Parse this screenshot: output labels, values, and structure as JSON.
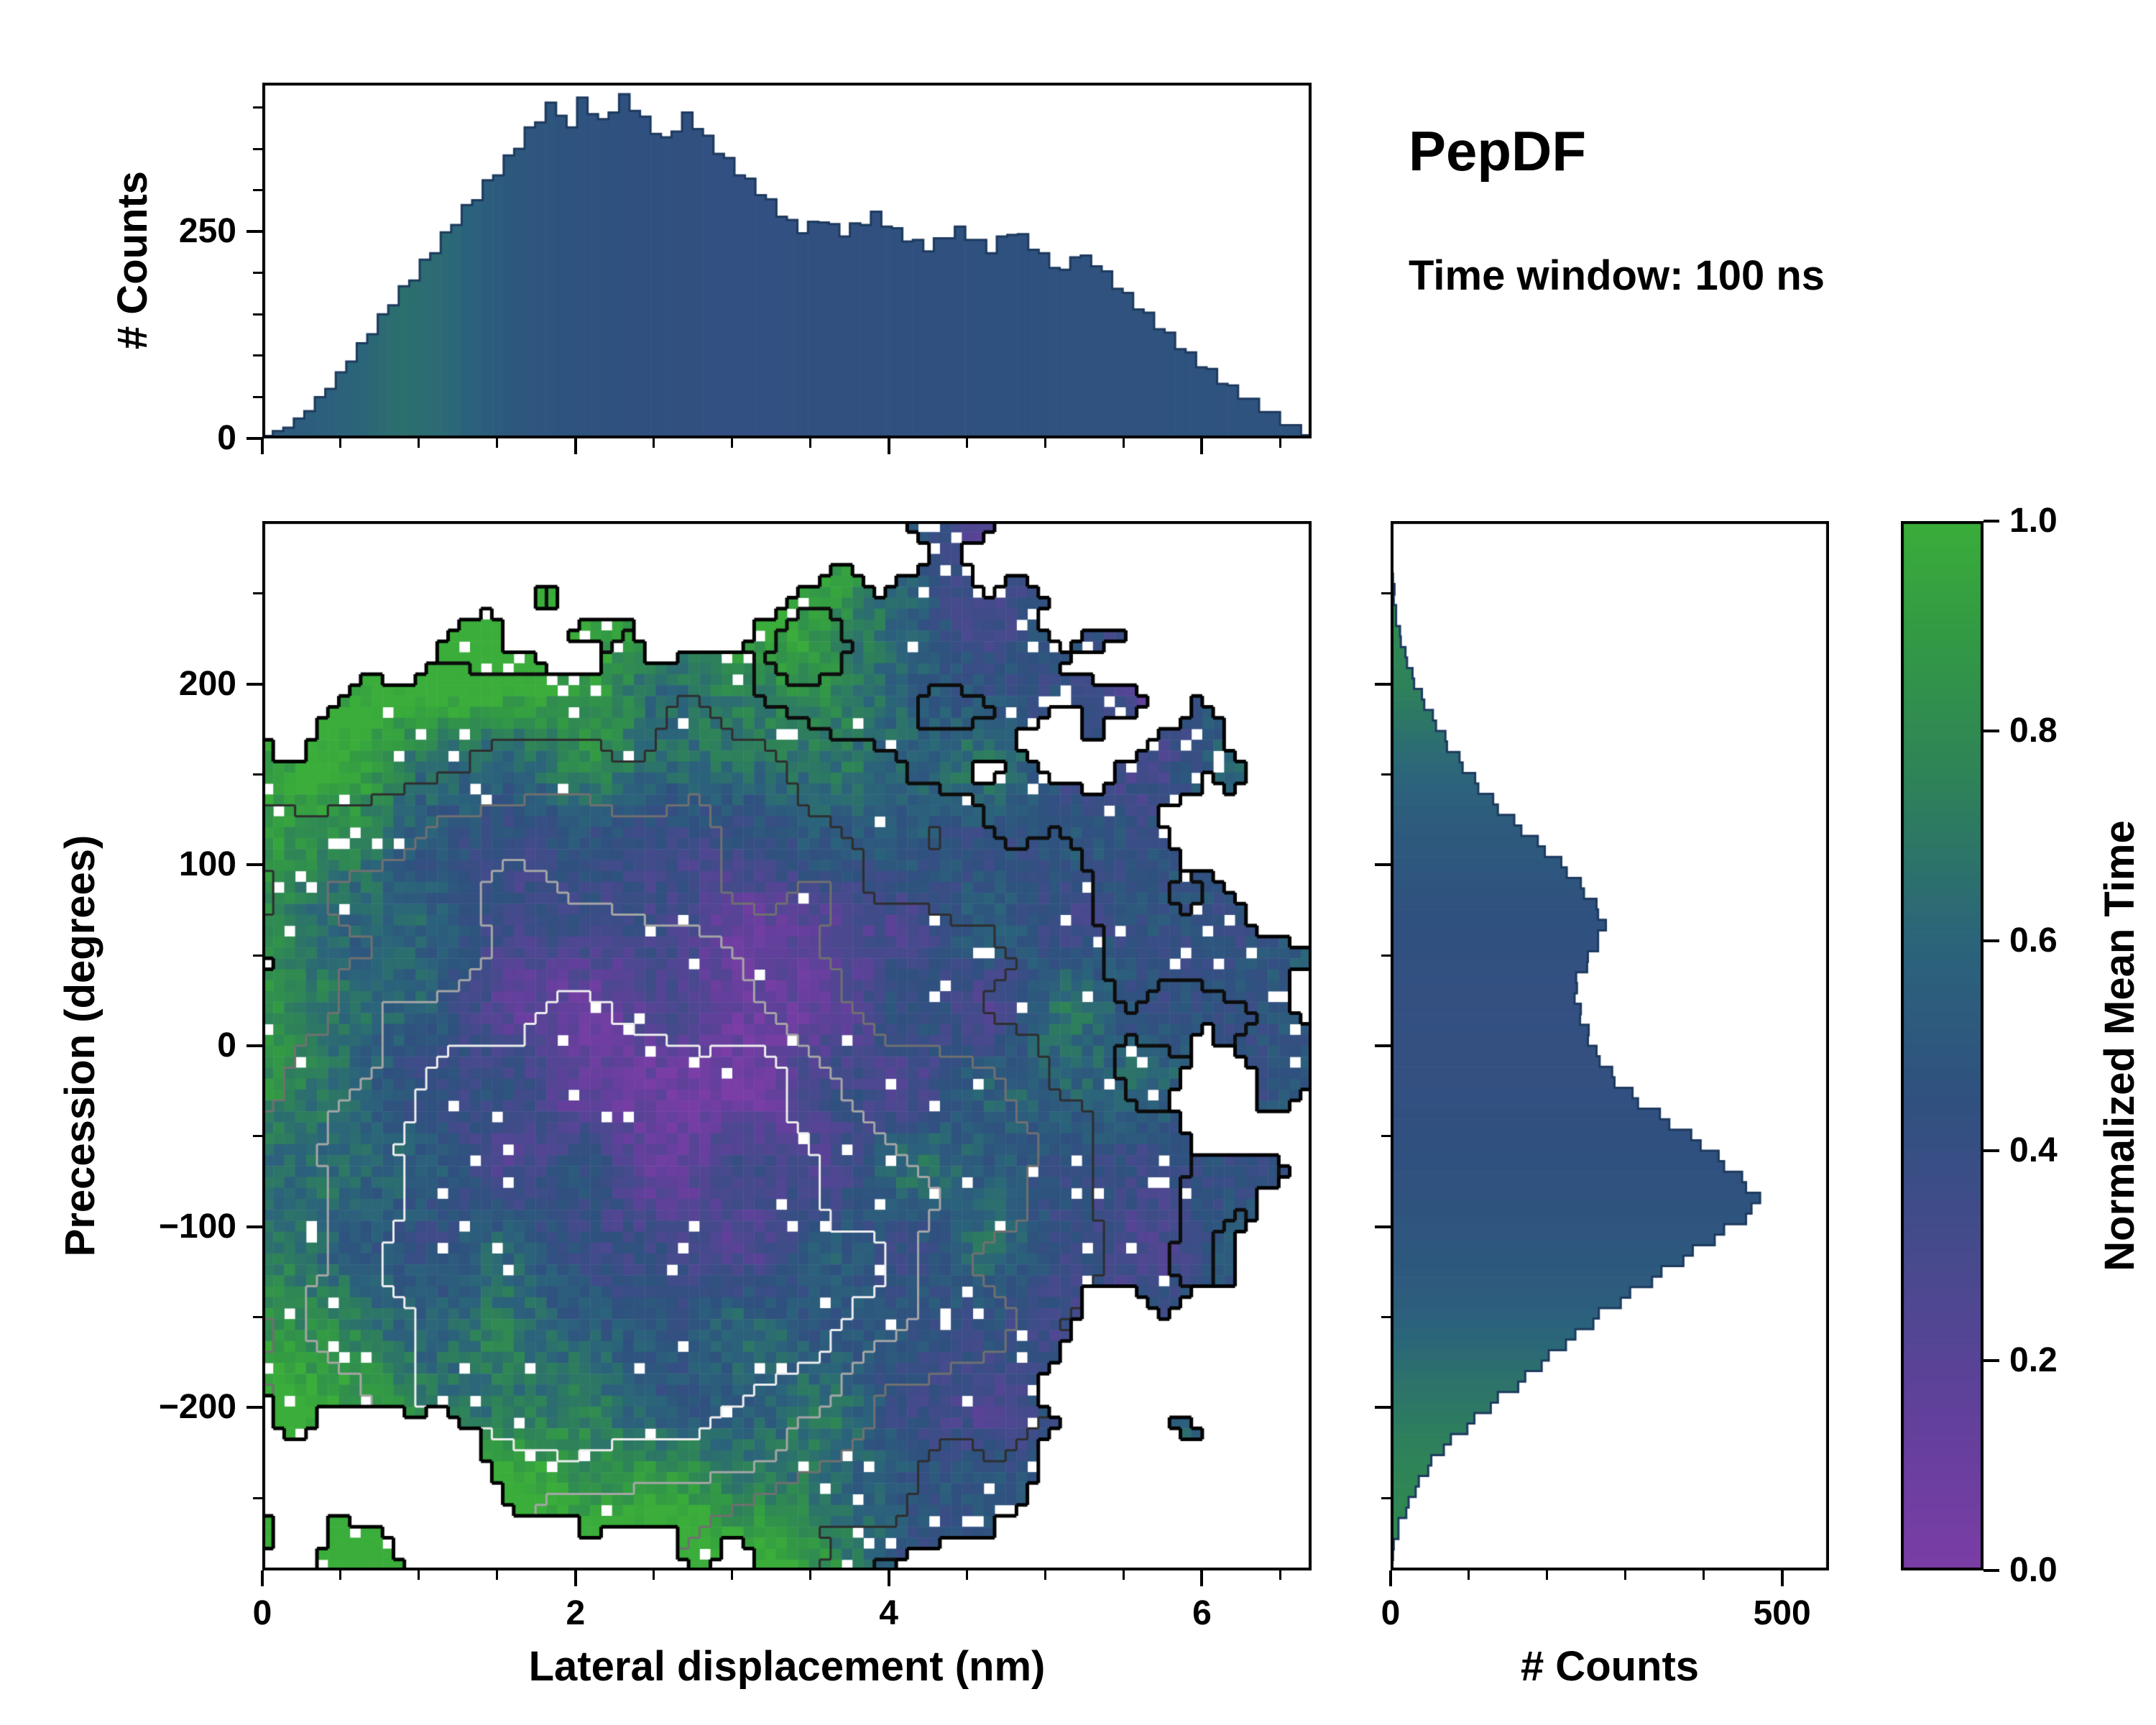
{
  "title": "PepDF",
  "subtitle": "Time window: 100 ns",
  "chart_data": [
    {
      "type": "bar",
      "name": "top-histogram",
      "ylabel": "# Counts",
      "xlim": [
        0,
        6.7
      ],
      "ylim": [
        0,
        430
      ],
      "ytick_values": [
        0,
        250
      ],
      "ytick_labels": [
        "0",
        "250"
      ],
      "outline_color": "#1d3a5e",
      "color_profile": [
        [
          0,
          0.52
        ],
        [
          0.5,
          0.58
        ],
        [
          0.9,
          0.66
        ],
        [
          1.2,
          0.62
        ],
        [
          1.6,
          0.5
        ],
        [
          2.2,
          0.45
        ],
        [
          3.0,
          0.43
        ],
        [
          4.0,
          0.44
        ],
        [
          5.5,
          0.46
        ],
        [
          6.7,
          0.47
        ]
      ],
      "values": [
        3,
        9,
        13,
        24,
        33,
        50,
        60,
        80,
        93,
        115,
        126,
        150,
        161,
        184,
        191,
        216,
        224,
        249,
        258,
        282,
        288,
        312,
        318,
        342,
        350,
        376,
        382,
        406,
        390,
        376,
        412,
        392,
        386,
        394,
        416,
        396,
        389,
        368,
        364,
        371,
        394,
        374,
        366,
        344,
        339,
        318,
        314,
        294,
        289,
        268,
        264,
        248,
        262,
        261,
        259,
        244,
        260,
        258,
        274,
        256,
        254,
        238,
        240,
        226,
        242,
        242,
        256,
        240,
        240,
        224,
        244,
        246,
        247,
        228,
        224,
        206,
        204,
        219,
        221,
        208,
        202,
        181,
        176,
        156,
        152,
        132,
        128,
        108,
        104,
        86,
        84,
        66,
        64,
        48,
        48,
        32,
        32,
        16,
        16,
        4
      ]
    },
    {
      "type": "heatmap",
      "name": "joint-distribution",
      "xlabel": "Lateral displacement (nm)",
      "ylabel": "Precession (degrees)",
      "xlim": [
        0,
        6.7
      ],
      "ylim": [
        -290,
        290
      ],
      "xtick_values": [
        0,
        2,
        4,
        6
      ],
      "xtick_labels": [
        "0",
        "2",
        "4",
        "6"
      ],
      "ytick_values": [
        -200,
        -100,
        0,
        100,
        200
      ],
      "ytick_labels": [
        "−200",
        "−100",
        "0",
        "100",
        "200"
      ],
      "colorbar": {
        "label": "Normalized Mean Time",
        "tick_values": [
          0,
          0.2,
          0.4,
          0.6,
          0.8,
          1
        ],
        "tick_labels": [
          "0.0",
          "0.2",
          "0.4",
          "0.6",
          "0.8",
          "1.0"
        ]
      },
      "colormap_stops": [
        [
          0,
          "#7b3da6"
        ],
        [
          0.15,
          "#61409b"
        ],
        [
          0.3,
          "#474a8d"
        ],
        [
          0.45,
          "#2f517f"
        ],
        [
          0.6,
          "#2b647b"
        ],
        [
          0.75,
          "#2e8259"
        ],
        [
          0.9,
          "#339b43"
        ],
        [
          1,
          "#3aad3a"
        ]
      ],
      "grid": {
        "nx": 96,
        "ny": 96,
        "seed": 11
      },
      "contour_levels": [
        {
          "level": 0.12,
          "color": "#0d0d0d",
          "width": 5
        },
        {
          "level": 0.3,
          "color": "#2e2e2e",
          "width": 3
        },
        {
          "level": 0.5,
          "color": "#707070",
          "width": 3
        },
        {
          "level": 0.7,
          "color": "#a6a6a6",
          "width": 3
        },
        {
          "level": 0.88,
          "color": "#efefef",
          "width": 3
        }
      ]
    },
    {
      "type": "bar",
      "name": "right-histogram",
      "orientation": "horizontal",
      "xlabel": "# Counts",
      "xlim": [
        0,
        560
      ],
      "ylim": [
        -290,
        290
      ],
      "xtick_values": [
        0,
        500
      ],
      "xtick_labels": [
        "0",
        "500"
      ],
      "outline_color": "#1d3a5e",
      "color_profile": [
        [
          -290,
          0.82
        ],
        [
          -230,
          0.76
        ],
        [
          -180,
          0.66
        ],
        [
          -130,
          0.52
        ],
        [
          -80,
          0.46
        ],
        [
          -30,
          0.43
        ],
        [
          20,
          0.42
        ],
        [
          70,
          0.45
        ],
        [
          120,
          0.52
        ],
        [
          160,
          0.63
        ],
        [
          200,
          0.75
        ],
        [
          250,
          0.82
        ],
        [
          290,
          0.85
        ]
      ],
      "values": [
        0,
        3,
        4,
        10,
        10,
        20,
        23,
        32,
        36,
        48,
        52,
        68,
        77,
        98,
        107,
        128,
        137,
        163,
        172,
        193,
        202,
        224,
        236,
        259,
        266,
        294,
        306,
        334,
        346,
        374,
        386,
        414,
        426,
        454,
        461,
        472,
        454,
        449,
        426,
        419,
        396,
        384,
        356,
        344,
        316,
        309,
        286,
        283,
        267,
        263,
        252,
        253,
        242,
        243,
        235,
        238,
        237,
        251,
        252,
        265,
        265,
        275,
        265,
        263,
        247,
        243,
        225,
        218,
        197,
        188,
        167,
        158,
        137,
        131,
        112,
        108,
        92,
        88,
        72,
        70,
        58,
        54,
        43,
        40,
        30,
        28,
        21,
        19,
        13,
        12,
        7,
        7,
        4,
        5,
        3,
        2,
        2,
        1,
        1,
        0
      ]
    }
  ]
}
